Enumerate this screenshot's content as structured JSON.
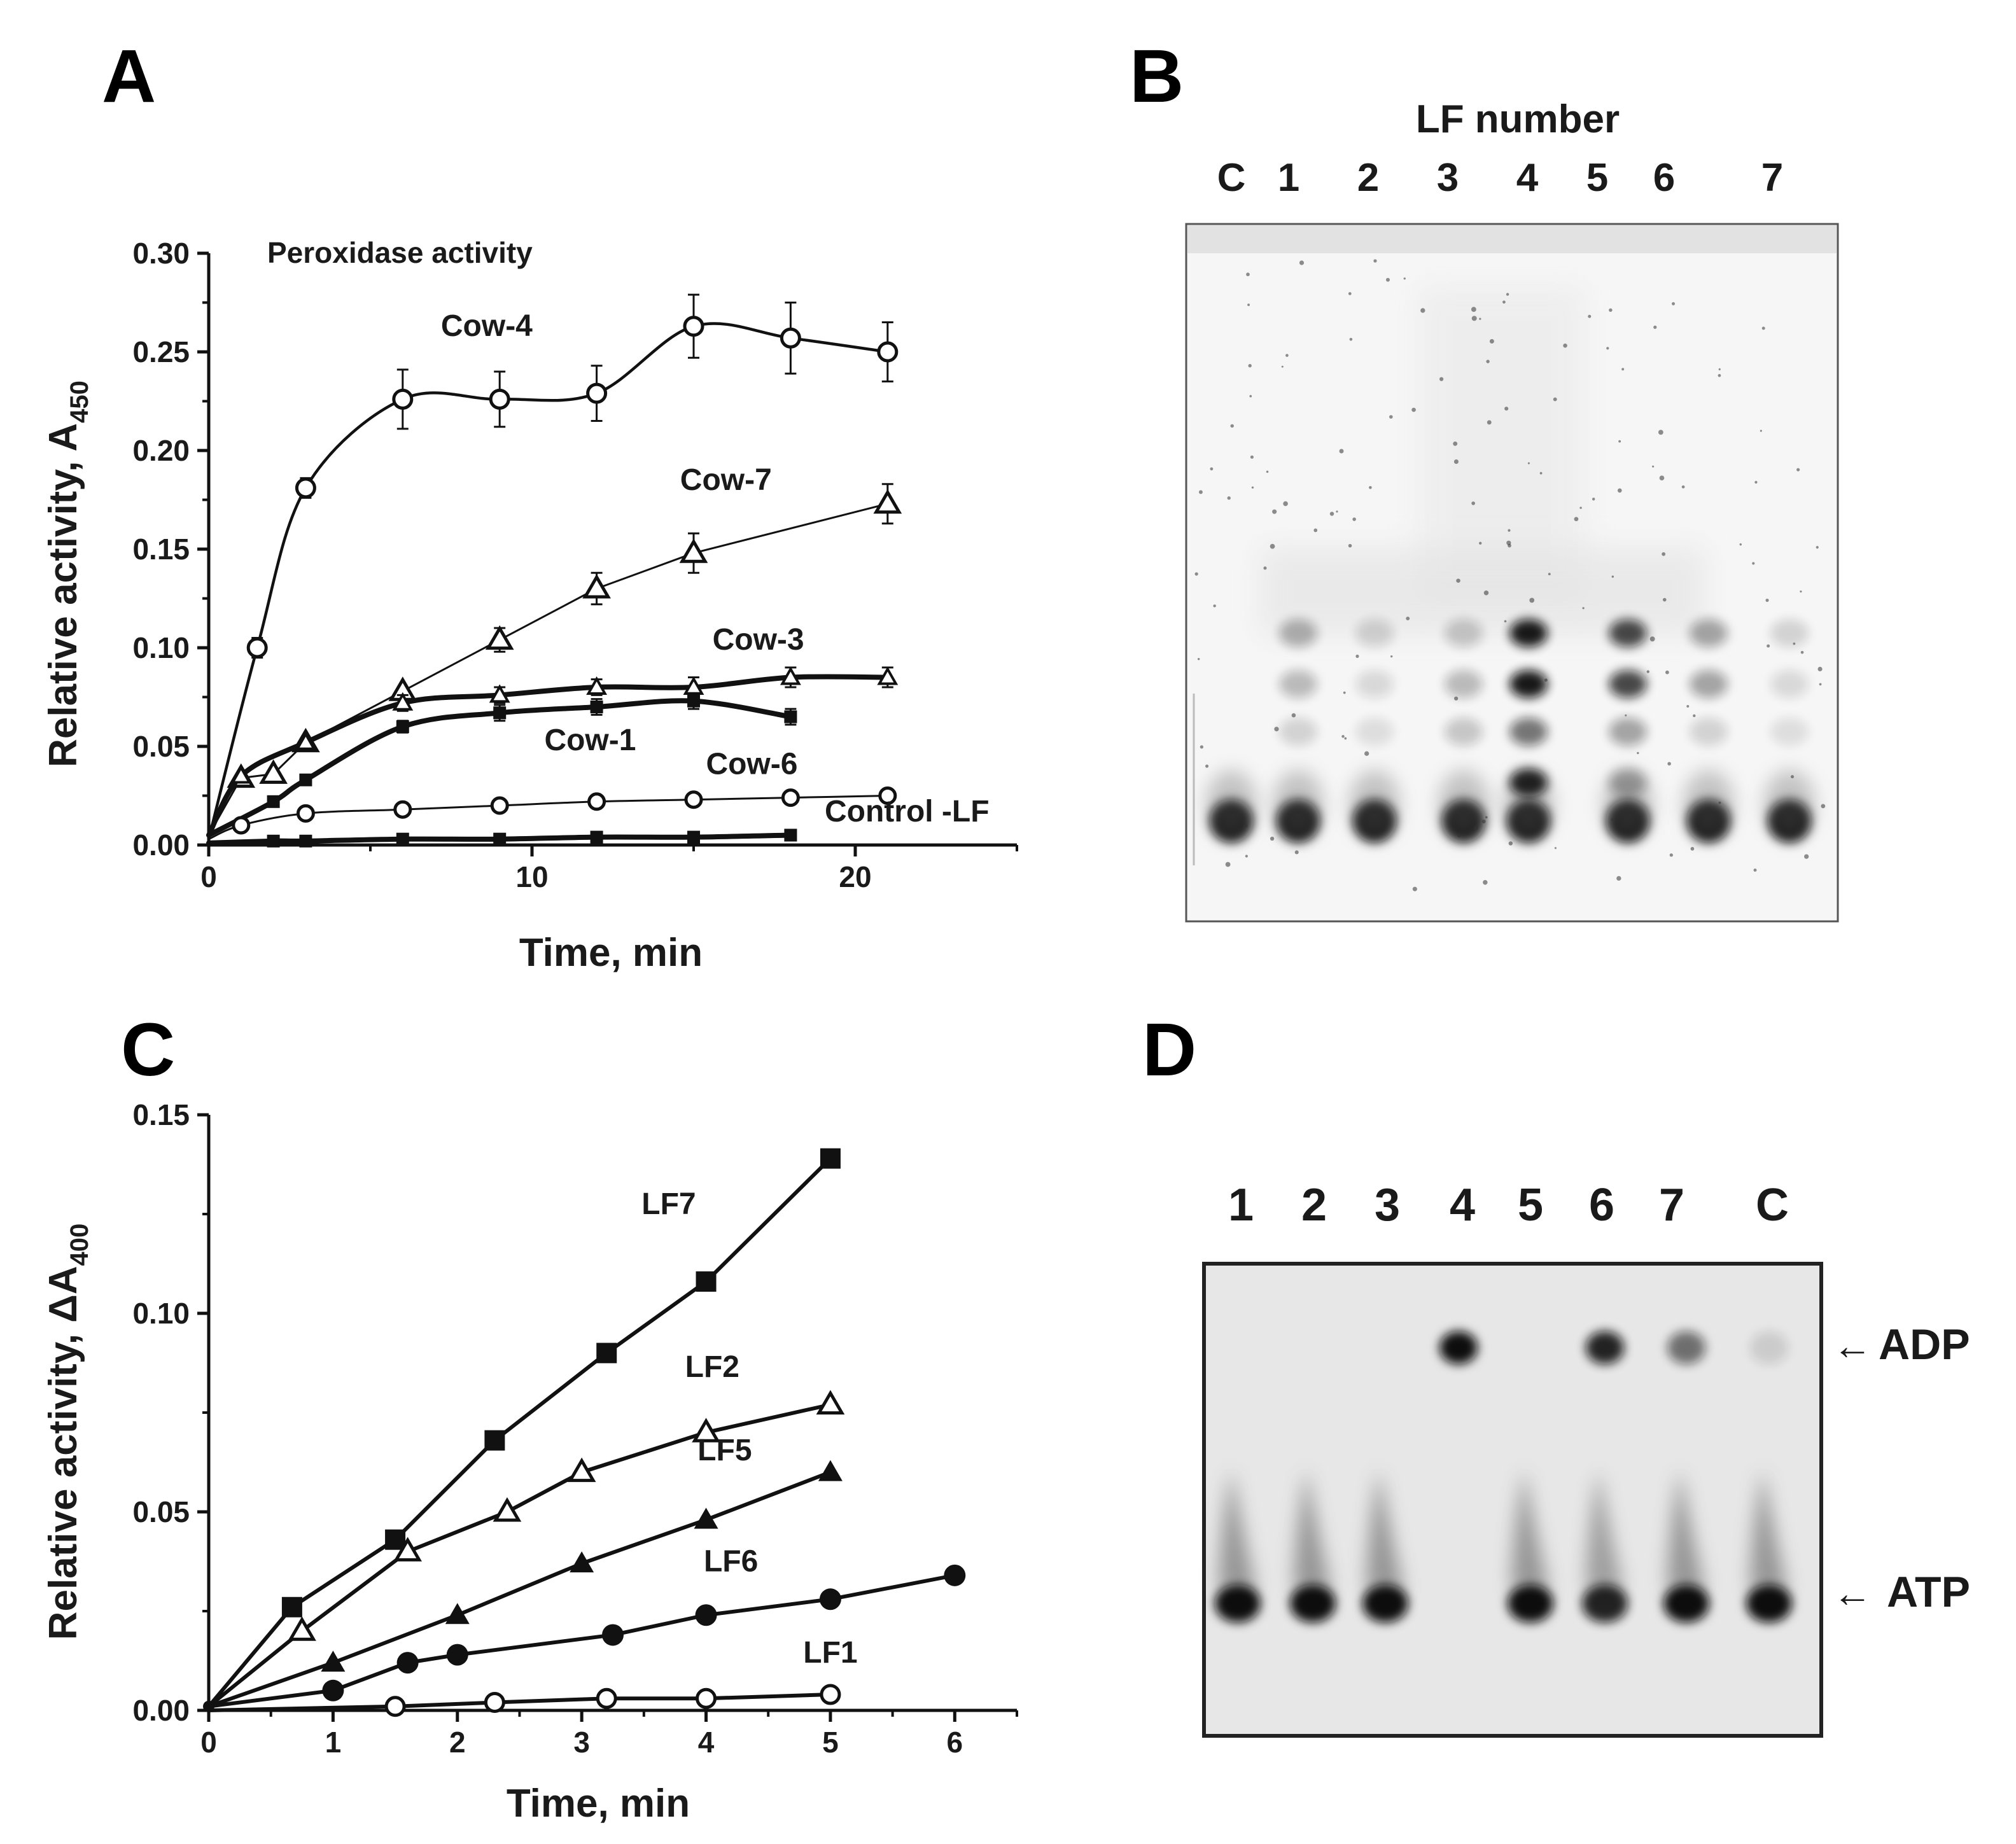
{
  "panels": {
    "A": {
      "panel_label": "A",
      "inner_title": "Peroxidase activity",
      "xlabel": "Time, min",
      "ylabel_main": "Relative activity, A",
      "ylabel_sub": "450"
    },
    "B": {
      "panel_label": "B",
      "header": "LF number",
      "lanes": [
        "C",
        "1",
        "2",
        "3",
        "4",
        "5",
        "6",
        "7"
      ]
    },
    "C": {
      "panel_label": "C",
      "xlabel": "Time, min",
      "ylabel_main": "Relative activity, ΔA",
      "ylabel_sub": "400"
    },
    "D": {
      "panel_label": "D",
      "lanes": [
        "1",
        "2",
        "3",
        "4",
        "5",
        "6",
        "7",
        "C"
      ],
      "adp_label": "ADP",
      "atp_label": "ATP",
      "arrow_glyph": "←"
    }
  },
  "chart_data": [
    {
      "panel": "A",
      "type": "line",
      "title": "Peroxidase activity",
      "xlabel": "Time, min",
      "ylabel": "Relative activity, A450",
      "xlim": [
        0,
        25
      ],
      "ylim": [
        0,
        0.3
      ],
      "xticks": [
        0,
        10,
        20
      ],
      "xtick_labels": [
        "0",
        "10",
        "20"
      ],
      "yticks": [
        0,
        0.05,
        0.1,
        0.15,
        0.2,
        0.25,
        0.3
      ],
      "ytick_labels": [
        "0.00",
        "0.05",
        "0.10",
        "0.15",
        "0.20",
        "0.25",
        "0.30"
      ],
      "grid": false,
      "series": [
        {
          "name": "Cow-4",
          "marker": "open-circle",
          "smooth": true,
          "line": "medium",
          "x": [
            0,
            1.5,
            3,
            6,
            9,
            12,
            15,
            18,
            21
          ],
          "y": [
            0.003,
            0.1,
            0.181,
            0.226,
            0.226,
            0.229,
            0.263,
            0.257,
            0.25
          ],
          "err": [
            0,
            0.005,
            0.005,
            0.015,
            0.014,
            0.014,
            0.016,
            0.018,
            0.015
          ]
        },
        {
          "name": "Cow-7",
          "marker": "open-triangle",
          "smooth": false,
          "line": "thin",
          "x": [
            0,
            1,
            2,
            3,
            6,
            9,
            12,
            15,
            21
          ],
          "y": [
            0.005,
            0.034,
            0.036,
            0.052,
            0.078,
            0.104,
            0.13,
            0.148,
            0.173
          ],
          "err": [
            0,
            0,
            0,
            0,
            0,
            0.006,
            0.008,
            0.01,
            0.01
          ]
        },
        {
          "name": "Cow-3",
          "marker": "small-open-triangle",
          "smooth": true,
          "line": "thick",
          "x": [
            0,
            1,
            3,
            6,
            9,
            12,
            15,
            18,
            21
          ],
          "y": [
            0.005,
            0.035,
            0.052,
            0.072,
            0.076,
            0.08,
            0.08,
            0.085,
            0.085
          ],
          "err": [
            0,
            0,
            0,
            0.004,
            0.004,
            0.004,
            0.005,
            0.005,
            0.005
          ]
        },
        {
          "name": "Cow-1",
          "marker": "small-filled-square",
          "smooth": true,
          "line": "thick",
          "x": [
            0,
            2,
            3,
            6,
            9,
            12,
            15,
            18
          ],
          "y": [
            0.005,
            0.022,
            0.033,
            0.06,
            0.067,
            0.07,
            0.073,
            0.065
          ],
          "err": [
            0,
            0,
            0,
            0.003,
            0.004,
            0.004,
            0.004,
            0.004
          ]
        },
        {
          "name": "Cow-6",
          "marker": "open-circle-small",
          "smooth": true,
          "line": "thin",
          "x": [
            0,
            1,
            3,
            6,
            9,
            12,
            15,
            18,
            21
          ],
          "y": [
            0.003,
            0.01,
            0.016,
            0.018,
            0.02,
            0.022,
            0.023,
            0.024,
            0.025
          ],
          "err": [
            0,
            0,
            0,
            0,
            0,
            0,
            0,
            0,
            0
          ]
        },
        {
          "name": "Control -LF",
          "marker": "small-filled-square",
          "smooth": true,
          "line": "thick",
          "x": [
            0,
            2,
            3,
            6,
            9,
            12,
            15,
            18
          ],
          "y": [
            0.001,
            0.002,
            0.002,
            0.003,
            0.003,
            0.004,
            0.004,
            0.005
          ],
          "err": [
            0,
            0,
            0,
            0,
            0,
            0,
            0,
            0
          ]
        }
      ],
      "annotations": [
        {
          "text": "Cow-4",
          "x": 8.6,
          "y": 0.258
        },
        {
          "text": "Cow-7",
          "x": 16.0,
          "y": 0.18
        },
        {
          "text": "Cow-3",
          "x": 17.0,
          "y": 0.099
        },
        {
          "text": "Cow-1",
          "x": 11.8,
          "y": 0.048
        },
        {
          "text": "Cow-6",
          "x": 16.8,
          "y": 0.036
        },
        {
          "text": "Control -LF",
          "x": 21.6,
          "y": 0.012
        }
      ]
    },
    {
      "panel": "C",
      "type": "line",
      "xlabel": "Time, min",
      "ylabel": "Relative activity, ΔA400",
      "xlim": [
        0,
        6.5
      ],
      "ylim": [
        0,
        0.15
      ],
      "xticks": [
        0,
        1,
        2,
        3,
        4,
        5,
        6
      ],
      "xtick_labels": [
        "0",
        "1",
        "2",
        "3",
        "4",
        "5",
        "6"
      ],
      "yticks": [
        0,
        0.05,
        0.1,
        0.15
      ],
      "ytick_labels": [
        "0.00",
        "0.05",
        "0.10",
        "0.15"
      ],
      "grid": false,
      "series": [
        {
          "name": "LF7",
          "marker": "filled-square",
          "x": [
            0,
            0.67,
            1.5,
            2.3,
            3.2,
            4,
            5
          ],
          "y": [
            0.001,
            0.026,
            0.043,
            0.068,
            0.09,
            0.108,
            0.139
          ]
        },
        {
          "name": "LF2",
          "marker": "open-triangle",
          "x": [
            0,
            0.75,
            1.6,
            2.4,
            3,
            4,
            5
          ],
          "y": [
            0.001,
            0.02,
            0.04,
            0.05,
            0.06,
            0.07,
            0.077
          ]
        },
        {
          "name": "LF5",
          "marker": "filled-triangle",
          "x": [
            0,
            1,
            2,
            3,
            4,
            5
          ],
          "y": [
            0.001,
            0.012,
            0.024,
            0.037,
            0.048,
            0.06
          ]
        },
        {
          "name": "LF6",
          "marker": "filled-circle",
          "x": [
            0,
            1,
            1.6,
            2,
            3.25,
            4,
            5,
            6
          ],
          "y": [
            0.001,
            0.005,
            0.012,
            0.014,
            0.019,
            0.024,
            0.028,
            0.034
          ]
        },
        {
          "name": "LF1",
          "marker": "open-circle",
          "x": [
            0,
            1.5,
            2.3,
            3.2,
            4,
            5
          ],
          "y": [
            0.0,
            0.001,
            0.002,
            0.003,
            0.003,
            0.004
          ]
        }
      ],
      "annotations": [
        {
          "text": "LF7",
          "x": 3.7,
          "y": 0.125
        },
        {
          "text": "LF2",
          "x": 4.05,
          "y": 0.084
        },
        {
          "text": "LF5",
          "x": 4.15,
          "y": 0.063
        },
        {
          "text": "LF6",
          "x": 4.2,
          "y": 0.035
        },
        {
          "text": "LF1",
          "x": 5.0,
          "y": 0.012
        }
      ]
    }
  ],
  "gel_B": {
    "background": "#f6f6f6",
    "spot_color": "#0a0a0a",
    "lanes": [
      {
        "label": "C",
        "spots": [
          1.0
        ]
      },
      {
        "label": "1",
        "spots": [
          1.0,
          0.15,
          0.25,
          0.3
        ]
      },
      {
        "label": "2",
        "spots": [
          1.0,
          0.1,
          0.12,
          0.15
        ]
      },
      {
        "label": "3",
        "spots": [
          1.0,
          0.2,
          0.25,
          0.2
        ]
      },
      {
        "label": "4",
        "spots": [
          1.0,
          0.55,
          0.95,
          0.95,
          0.9
        ]
      },
      {
        "label": "5",
        "spots": [
          1.0,
          0.35,
          0.75,
          0.75,
          0.3
        ]
      },
      {
        "label": "6",
        "spots": [
          1.0,
          0.15,
          0.35,
          0.35
        ]
      },
      {
        "label": "7",
        "spots": [
          1.0,
          0.1,
          0.12,
          0.15
        ]
      }
    ]
  },
  "gel_D": {
    "background": "#e7e7e7",
    "spot_color": "#111111",
    "adp_intensity": [
      0,
      0,
      0,
      1.0,
      0,
      0.9,
      0.55,
      0.12
    ],
    "atp_intensity": [
      1.0,
      1.0,
      1.0,
      0,
      1.0,
      0.9,
      1.0,
      1.0
    ]
  }
}
